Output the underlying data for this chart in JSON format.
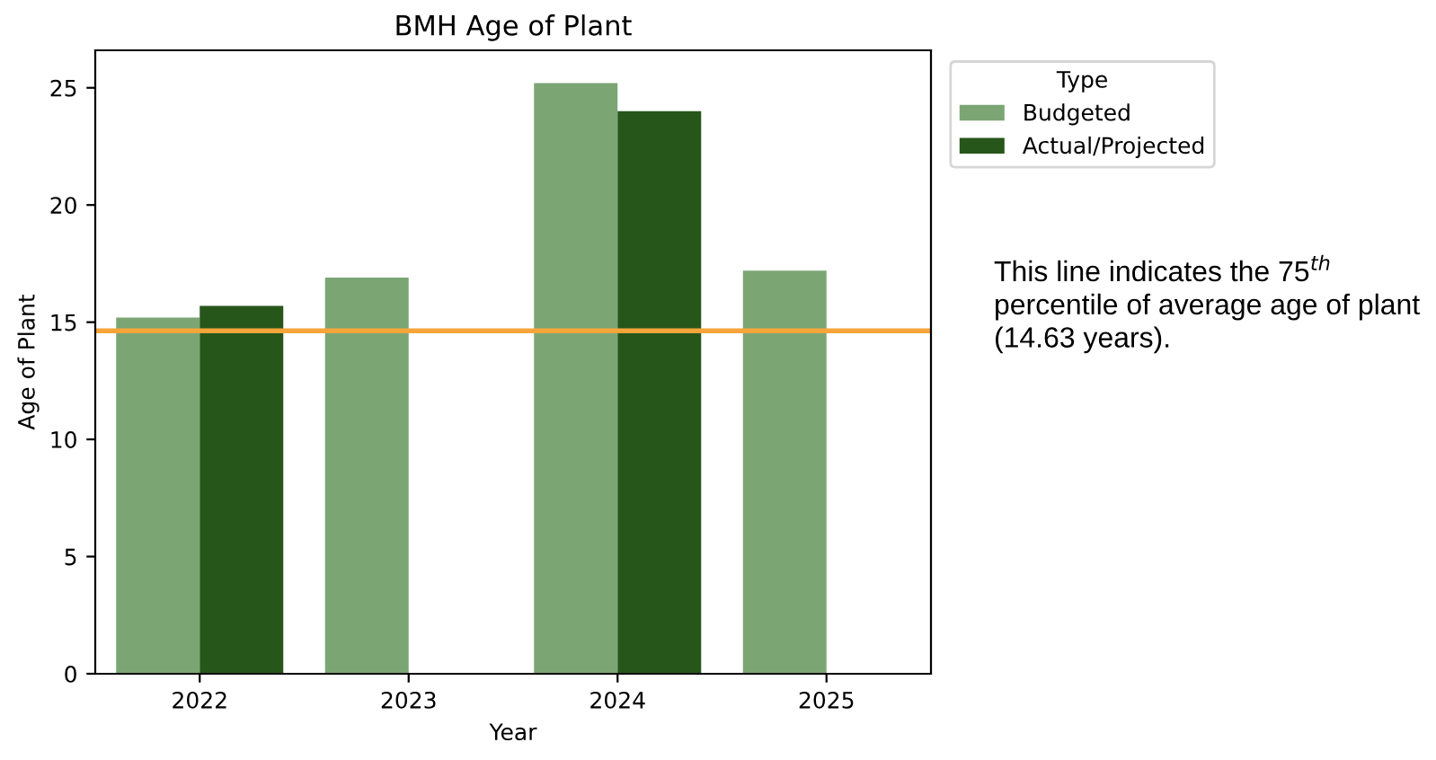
{
  "chart_data": {
    "type": "bar",
    "title": "BMH Age of Plant",
    "xlabel": "Year",
    "ylabel": "Age of Plant",
    "legend_title": "Type",
    "categories": [
      "2022",
      "2023",
      "2024",
      "2025"
    ],
    "series": [
      {
        "name": "Budgeted",
        "color": "#7ba674",
        "values": [
          15.2,
          16.9,
          25.2,
          17.2
        ]
      },
      {
        "name": "Actual/Projected",
        "color": "#27561a",
        "values": [
          15.7,
          null,
          24.0,
          null
        ]
      }
    ],
    "ylim": [
      0,
      26.6
    ],
    "yticks": [
      0,
      5,
      10,
      15,
      20,
      25
    ],
    "ref_lines": [
      {
        "axis": "y",
        "value": 14.63,
        "label": null,
        "color": "#f5a53a",
        "line_style": "solid"
      }
    ],
    "annotations": [
      "This line indicates the 75$^{th}$ percentile of average age of plant (14.63 years)."
    ],
    "legend": "top right",
    "grid": false
  }
}
